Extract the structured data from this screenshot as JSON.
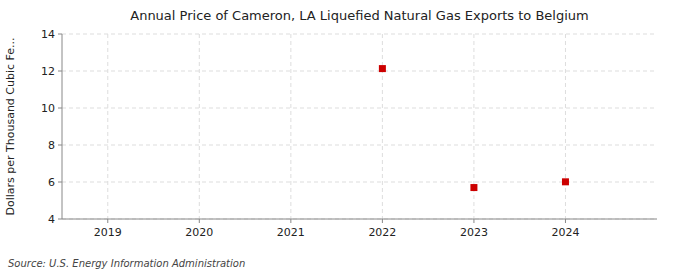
{
  "chart_data": {
    "type": "scatter",
    "title": "Annual Price of Cameron, LA Liquefied Natural Gas Exports to Belgium",
    "ylabel": "Dollars per Thousand Cubic Fe...",
    "source": "Source: U.S. Energy Information Administration",
    "x": [
      2022,
      2023,
      2024
    ],
    "values": [
      12.13,
      5.7,
      6.01
    ],
    "color": "#CC0000",
    "marker": "square",
    "xlim": [
      2018.5,
      2025.0
    ],
    "ylim": [
      4,
      14
    ],
    "xticks": [
      2019,
      2020,
      2021,
      2022,
      2023,
      2024
    ],
    "yticks": [
      4,
      6,
      8,
      10,
      12,
      14
    ],
    "grid": true
  }
}
